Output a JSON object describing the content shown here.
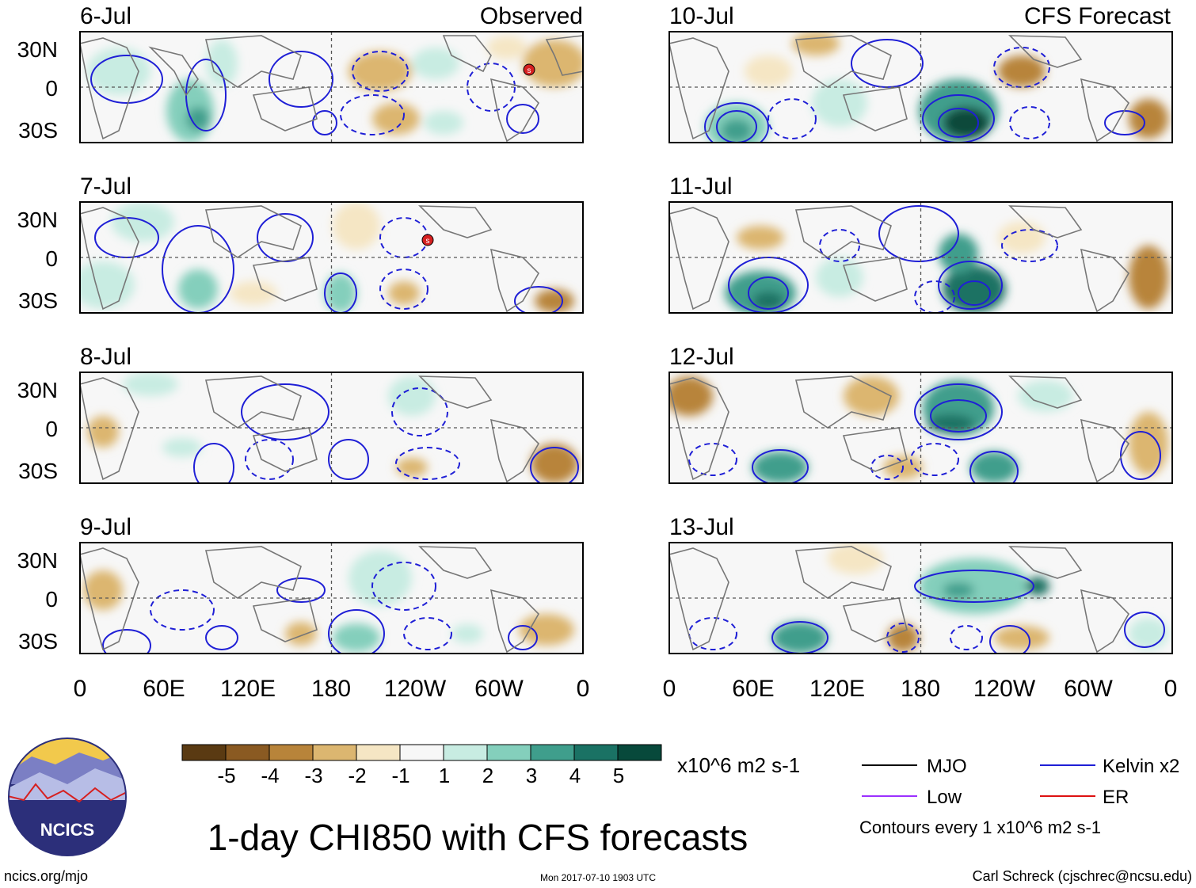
{
  "title": "1-day CHI850 with CFS forecasts",
  "timestamp": "Mon 2017-07-10 1903 UTC",
  "site_url": "ncics.org/mjo",
  "author": "Carl Schreck (cjschrec@ncsu.edu)",
  "logo_text": "NCICS",
  "columns": [
    {
      "label": "Observed",
      "days": [
        "6-Jul",
        "7-Jul",
        "8-Jul",
        "9-Jul"
      ]
    },
    {
      "label": "CFS Forecast",
      "days": [
        "10-Jul",
        "11-Jul",
        "12-Jul",
        "13-Jul"
      ]
    }
  ],
  "lat_labels": [
    "30N",
    "0",
    "30S"
  ],
  "lon_labels": [
    "0",
    "60E",
    "120E",
    "180",
    "120W",
    "60W",
    "0"
  ],
  "colorbar": {
    "units": "x10^6 m2 s-1",
    "tick_labels": [
      "-5",
      "-4",
      "-3",
      "-2",
      "-1",
      "1",
      "2",
      "3",
      "4",
      "5"
    ],
    "colors": [
      "#5a3a12",
      "#8a5a22",
      "#b8843a",
      "#dcb670",
      "#f5e6c4",
      "#f7f7f7",
      "#c8ece2",
      "#84cfbc",
      "#3f9e8c",
      "#1a7264",
      "#07493b"
    ]
  },
  "legend": {
    "items": [
      {
        "label": "MJO",
        "color": "#000000"
      },
      {
        "label": "Kelvin x2",
        "color": "#1f1fd6"
      },
      {
        "label": "Low",
        "color": "#9b30ff"
      },
      {
        "label": "ER",
        "color": "#dd1111"
      }
    ],
    "note": "Contours every 1 x10^6 m2 s-1"
  },
  "storm_markers": [
    {
      "panel_day": "6-Jul",
      "lon": -22,
      "lat": 14,
      "symbol": "storm"
    },
    {
      "panel_day": "7-Jul",
      "lon": -110,
      "lat": 12,
      "symbol": "storm"
    }
  ]
}
